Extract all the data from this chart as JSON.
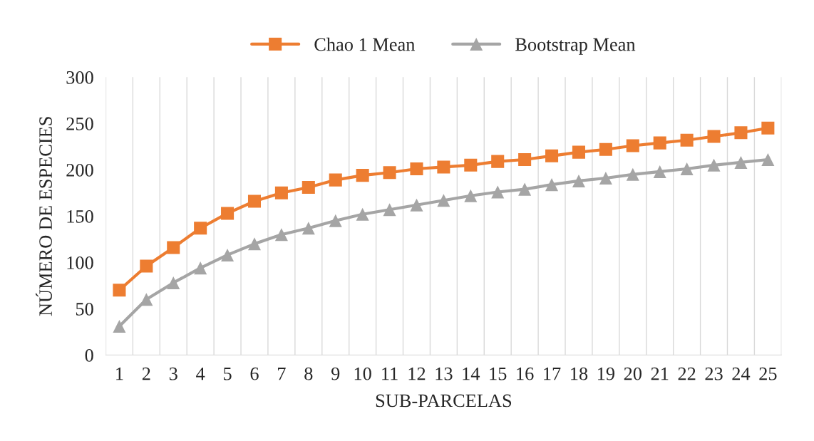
{
  "chart_data": {
    "type": "line",
    "xlabel": "SUB-PARCELAS",
    "ylabel": "NÚMERO DE ESPECIES",
    "categories": [
      "1",
      "2",
      "3",
      "4",
      "5",
      "6",
      "7",
      "8",
      "9",
      "10",
      "11",
      "12",
      "13",
      "14",
      "15",
      "16",
      "17",
      "18",
      "19",
      "20",
      "21",
      "22",
      "23",
      "24",
      "25"
    ],
    "series": [
      {
        "name": "Chao 1 Mean",
        "color": "#ed7d31",
        "marker": "square",
        "values": [
          70,
          96,
          116,
          137,
          153,
          166,
          175,
          181,
          189,
          194,
          197,
          201,
          203,
          205,
          209,
          211,
          215,
          219,
          222,
          226,
          229,
          232,
          236,
          240,
          245
        ]
      },
      {
        "name": "Bootstrap Mean",
        "color": "#a5a5a5",
        "marker": "triangle",
        "values": [
          31,
          60,
          78,
          94,
          108,
          120,
          130,
          137,
          145,
          152,
          157,
          162,
          167,
          172,
          176,
          179,
          184,
          188,
          191,
          195,
          198,
          201,
          205,
          208,
          211
        ]
      }
    ],
    "ylim": [
      0,
      300
    ],
    "yticks": [
      0,
      50,
      100,
      150,
      200,
      250,
      300
    ],
    "grid": "x",
    "legend": "top",
    "line_style": "solid"
  }
}
